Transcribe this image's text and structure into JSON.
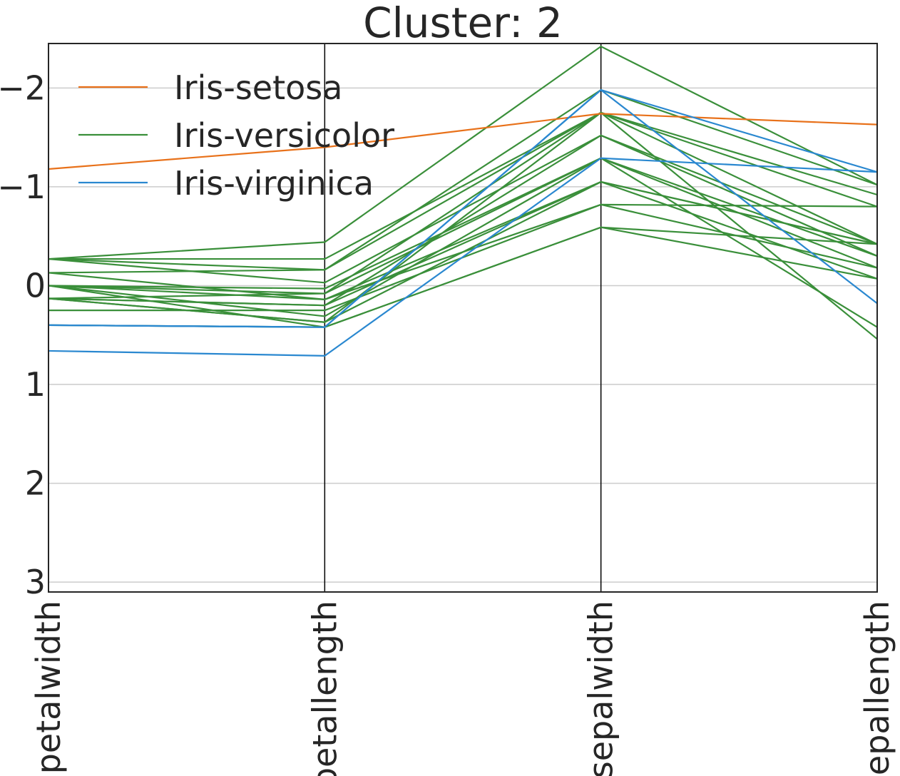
{
  "chart_data": {
    "type": "line",
    "subtype": "parallel-coordinates",
    "title": "Cluster: 2",
    "dimensions": [
      "petalwidth",
      "petallength",
      "sepalwidth",
      "sepallength"
    ],
    "y_axis": {
      "inverted": true,
      "ylim": [
        -2.45,
        3.1
      ],
      "ticks": [
        -2,
        -1,
        0,
        1,
        2,
        3
      ],
      "tick_labels": [
        "−2",
        "−1",
        "0",
        "1",
        "2",
        "3"
      ]
    },
    "grid": true,
    "legend_location": "upper-left",
    "classes": [
      {
        "name": "Iris-setosa",
        "color": "#e8711a"
      },
      {
        "name": "Iris-versicolor",
        "color": "#3a8f3a"
      },
      {
        "name": "Iris-virginica",
        "color": "#2a88d0"
      }
    ],
    "lines": [
      {
        "class": "Iris-setosa",
        "values": [
          -1.18,
          -1.4,
          -1.74,
          -1.63
        ]
      },
      {
        "class": "Iris-versicolor",
        "values": [
          -0.27,
          -0.44,
          -2.42,
          -1.02
        ]
      },
      {
        "class": "Iris-versicolor",
        "values": [
          -0.27,
          -0.27,
          -1.75,
          -0.92
        ]
      },
      {
        "class": "Iris-versicolor",
        "values": [
          -0.27,
          -0.16,
          -1.75,
          -0.8
        ]
      },
      {
        "class": "Iris-versicolor",
        "values": [
          -0.13,
          -0.16,
          -1.98,
          -1.02
        ]
      },
      {
        "class": "Iris-versicolor",
        "values": [
          -0.27,
          -0.03,
          -1.52,
          -0.42
        ]
      },
      {
        "class": "Iris-versicolor",
        "values": [
          0.0,
          0.03,
          -1.29,
          -0.3
        ]
      },
      {
        "class": "Iris-versicolor",
        "values": [
          0.0,
          0.08,
          -1.75,
          -0.42
        ]
      },
      {
        "class": "Iris-versicolor",
        "values": [
          0.13,
          0.08,
          -1.29,
          -0.18
        ]
      },
      {
        "class": "Iris-versicolor",
        "values": [
          0.0,
          0.14,
          -1.05,
          -0.07
        ]
      },
      {
        "class": "Iris-versicolor",
        "values": [
          -0.13,
          0.14,
          -0.82,
          -0.8
        ]
      },
      {
        "class": "Iris-versicolor",
        "values": [
          0.13,
          0.2,
          -1.05,
          -0.42
        ]
      },
      {
        "class": "Iris-versicolor",
        "values": [
          0.13,
          0.2,
          -1.52,
          -0.3
        ]
      },
      {
        "class": "Iris-versicolor",
        "values": [
          0.25,
          0.25,
          -0.82,
          -0.18
        ]
      },
      {
        "class": "Iris-versicolor",
        "values": [
          0.0,
          0.31,
          -1.29,
          0.42
        ]
      },
      {
        "class": "Iris-versicolor",
        "values": [
          0.13,
          0.37,
          -1.75,
          0.54
        ]
      },
      {
        "class": "Iris-versicolor",
        "values": [
          0.13,
          0.37,
          -1.05,
          -0.42
        ]
      },
      {
        "class": "Iris-versicolor",
        "values": [
          0.4,
          0.42,
          -0.59,
          -0.07
        ]
      },
      {
        "class": "Iris-versicolor",
        "values": [
          0.0,
          0.42,
          -0.59,
          -0.42
        ]
      },
      {
        "class": "Iris-virginica",
        "values": [
          0.4,
          0.42,
          -1.98,
          0.18
        ]
      },
      {
        "class": "Iris-virginica",
        "values": [
          0.66,
          0.71,
          -1.29,
          -1.15
        ]
      },
      {
        "class": "Iris-virginica",
        "values": [
          0.4,
          0.42,
          -1.98,
          -1.15
        ]
      }
    ]
  }
}
